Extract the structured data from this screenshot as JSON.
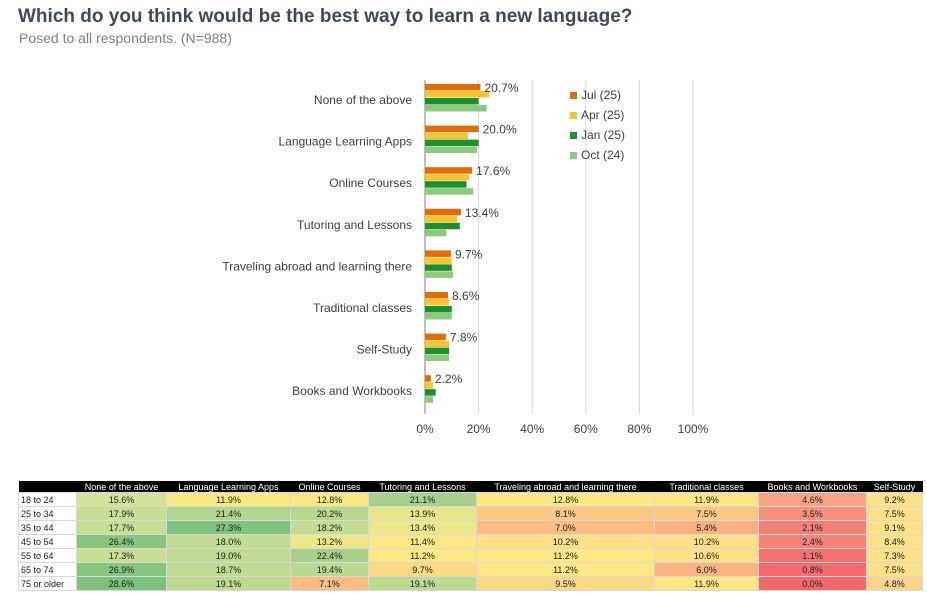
{
  "title": "Which do you think would be the best way to learn a new language?",
  "subtitle": "Posed to all respondents. (N=988)",
  "chart_data": {
    "type": "bar",
    "orientation": "horizontal",
    "categories": [
      "None of the above",
      "Language Learning Apps",
      "Online Courses",
      "Tutoring and Lessons",
      "Traveling abroad and learning there",
      "Traditional classes",
      "Self-Study",
      "Books and Workbooks"
    ],
    "series": [
      {
        "name": "Jul (25)",
        "color": "#e36c0a",
        "values": [
          20.7,
          20.0,
          17.6,
          13.4,
          9.7,
          8.6,
          7.8,
          2.2
        ]
      },
      {
        "name": "Apr (25)",
        "color": "#f4c431",
        "values": [
          24.0,
          16.0,
          16.5,
          12.0,
          10.0,
          9.0,
          9.0,
          3.0
        ]
      },
      {
        "name": "Jan (25)",
        "color": "#1f8f2e",
        "values": [
          20.0,
          20.0,
          15.5,
          13.0,
          10.0,
          10.0,
          9.0,
          4.0
        ]
      },
      {
        "name": "Oct (24)",
        "color": "#8cc97c",
        "values": [
          23.0,
          19.5,
          18.0,
          8.0,
          10.5,
          10.0,
          9.0,
          3.0
        ]
      }
    ],
    "data_labels": [
      "20.7%",
      "20.0%",
      "17.6%",
      "13.4%",
      "9.7%",
      "8.6%",
      "7.8%",
      "2.2%"
    ],
    "x_ticks": [
      "0%",
      "20%",
      "40%",
      "60%",
      "80%",
      "100%"
    ],
    "xlim": [
      0,
      100
    ],
    "grid": true,
    "legend_position": "right"
  },
  "table": {
    "headers": [
      "",
      "None of the above",
      "Language Learning Apps",
      "Online Courses",
      "Tutoring and Lessons",
      "Traveling abroad and learning there",
      "Traditional classes",
      "Books and Workbooks",
      "Self-Study"
    ],
    "rows": [
      {
        "label": "18 to 24",
        "cells": [
          {
            "text": "15.6%",
            "color": "#d3e29a"
          },
          {
            "text": "11.9%",
            "color": "#fbe885"
          },
          {
            "text": "12.8%",
            "color": "#fbe885"
          },
          {
            "text": "21.1%",
            "color": "#a8d08d"
          },
          {
            "text": "12.8%",
            "color": "#fbe885"
          },
          {
            "text": "11.9%",
            "color": "#fbe885"
          },
          {
            "text": "4.6%",
            "color": "#f8a383"
          },
          {
            "text": "9.2%",
            "color": "#fde28a"
          }
        ]
      },
      {
        "label": "25 to 34",
        "cells": [
          {
            "text": "17.9%",
            "color": "#c6dd93"
          },
          {
            "text": "21.4%",
            "color": "#b2d58e"
          },
          {
            "text": "20.2%",
            "color": "#b7d78f"
          },
          {
            "text": "13.9%",
            "color": "#e6e68b"
          },
          {
            "text": "8.1%",
            "color": "#fcc886"
          },
          {
            "text": "7.5%",
            "color": "#fcc886"
          },
          {
            "text": "3.5%",
            "color": "#f79179"
          },
          {
            "text": "7.5%",
            "color": "#fde08a"
          }
        ]
      },
      {
        "label": "35 to 44",
        "cells": [
          {
            "text": "17.7%",
            "color": "#c6dd93"
          },
          {
            "text": "27.3%",
            "color": "#80c37f"
          },
          {
            "text": "18.2%",
            "color": "#c2dc92"
          },
          {
            "text": "13.4%",
            "color": "#ebe78a"
          },
          {
            "text": "7.0%",
            "color": "#fbbd83"
          },
          {
            "text": "5.4%",
            "color": "#fab07f"
          },
          {
            "text": "2.1%",
            "color": "#f57e76"
          },
          {
            "text": "9.1%",
            "color": "#fde28a"
          }
        ]
      },
      {
        "label": "45 to 54",
        "cells": [
          {
            "text": "26.4%",
            "color": "#88c680"
          },
          {
            "text": "18.0%",
            "color": "#c2dc92"
          },
          {
            "text": "13.2%",
            "color": "#ede78a"
          },
          {
            "text": "11.4%",
            "color": "#fde885"
          },
          {
            "text": "10.2%",
            "color": "#fddf88"
          },
          {
            "text": "10.2%",
            "color": "#fddf88"
          },
          {
            "text": "2.4%",
            "color": "#f68177"
          },
          {
            "text": "8.4%",
            "color": "#fde28a"
          }
        ]
      },
      {
        "label": "55 to 64",
        "cells": [
          {
            "text": "17.3%",
            "color": "#c9de94"
          },
          {
            "text": "19.0%",
            "color": "#bdda91"
          },
          {
            "text": "22.4%",
            "color": "#a8d08d"
          },
          {
            "text": "11.2%",
            "color": "#fde885"
          },
          {
            "text": "11.2%",
            "color": "#fde885"
          },
          {
            "text": "10.6%",
            "color": "#fde285"
          },
          {
            "text": "1.1%",
            "color": "#f47173"
          },
          {
            "text": "7.3%",
            "color": "#fde08a"
          }
        ]
      },
      {
        "label": "65 to 74",
        "cells": [
          {
            "text": "26.9%",
            "color": "#85c57f"
          },
          {
            "text": "18.7%",
            "color": "#bfdb92"
          },
          {
            "text": "19.4%",
            "color": "#bbda91"
          },
          {
            "text": "9.7%",
            "color": "#fcd985"
          },
          {
            "text": "11.2%",
            "color": "#fde885"
          },
          {
            "text": "6.0%",
            "color": "#fab482"
          },
          {
            "text": "0.8%",
            "color": "#f46c72"
          },
          {
            "text": "7.5%",
            "color": "#fde08a"
          }
        ]
      },
      {
        "label": "75 or older",
        "cells": [
          {
            "text": "28.6%",
            "color": "#7cc17e"
          },
          {
            "text": "19.1%",
            "color": "#bdda91"
          },
          {
            "text": "7.1%",
            "color": "#fbbd83"
          },
          {
            "text": "19.1%",
            "color": "#bdda91"
          },
          {
            "text": "9.5%",
            "color": "#fcd985"
          },
          {
            "text": "11.9%",
            "color": "#fbe885"
          },
          {
            "text": "0.0%",
            "color": "#f3696b"
          },
          {
            "text": "4.8%",
            "color": "#fcd389"
          }
        ]
      }
    ]
  }
}
